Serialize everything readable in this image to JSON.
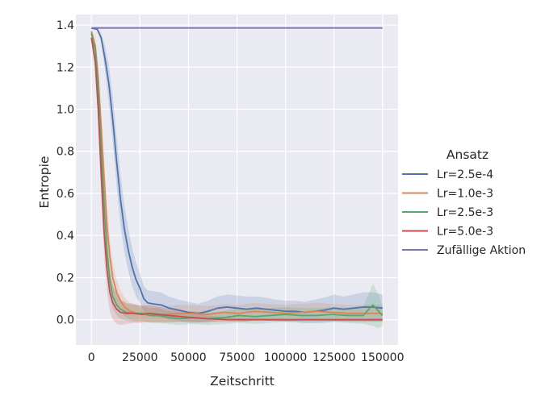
{
  "chart_data": {
    "type": "line",
    "title": "",
    "xlabel": "Zeitschritt",
    "ylabel": "Entropie",
    "xlim": [
      -8000,
      158000
    ],
    "ylim": [
      -0.12,
      1.45
    ],
    "xticks": [
      0,
      25000,
      50000,
      75000,
      100000,
      125000,
      150000
    ],
    "xtick_labels": [
      "0",
      "25000",
      "50000",
      "75000",
      "100000",
      "125000",
      "150000"
    ],
    "yticks": [
      0.0,
      0.2,
      0.4,
      0.6,
      0.8,
      1.0,
      1.2,
      1.4
    ],
    "ytick_labels": [
      "0.0",
      "0.2",
      "0.4",
      "0.6",
      "0.8",
      "1.0",
      "1.2",
      "1.4"
    ],
    "grid": true,
    "legend": {
      "title": "Ansatz",
      "placement": "right"
    },
    "colors": {
      "background": "#eaeaf2",
      "grid": "#ffffff"
    },
    "series": [
      {
        "name": "Lr=2.5e-4",
        "color": "#4c72b0",
        "x": [
          0,
          3000,
          5000,
          7000,
          9000,
          11000,
          13000,
          15000,
          17000,
          19000,
          21000,
          23000,
          25000,
          27000,
          29000,
          32000,
          36000,
          40000,
          45000,
          50000,
          55000,
          60000,
          65000,
          70000,
          75000,
          80000,
          85000,
          90000,
          95000,
          100000,
          105000,
          110000,
          115000,
          120000,
          125000,
          130000,
          135000,
          140000,
          145000,
          150000
        ],
        "y": [
          1.385,
          1.38,
          1.34,
          1.24,
          1.12,
          0.95,
          0.75,
          0.57,
          0.43,
          0.33,
          0.25,
          0.19,
          0.15,
          0.1,
          0.08,
          0.075,
          0.07,
          0.055,
          0.045,
          0.035,
          0.03,
          0.04,
          0.055,
          0.06,
          0.055,
          0.05,
          0.055,
          0.05,
          0.045,
          0.04,
          0.04,
          0.035,
          0.04,
          0.045,
          0.055,
          0.05,
          0.055,
          0.06,
          0.06,
          0.055
        ],
        "band": [
          0.0,
          0.005,
          0.02,
          0.06,
          0.09,
          0.11,
          0.12,
          0.12,
          0.11,
          0.1,
          0.09,
          0.08,
          0.07,
          0.06,
          0.06,
          0.06,
          0.06,
          0.055,
          0.05,
          0.05,
          0.045,
          0.05,
          0.055,
          0.06,
          0.06,
          0.06,
          0.055,
          0.055,
          0.05,
          0.05,
          0.05,
          0.05,
          0.055,
          0.06,
          0.065,
          0.06,
          0.065,
          0.07,
          0.07,
          0.065
        ]
      },
      {
        "name": "Lr=1.0e-3",
        "color": "#dd8452",
        "x": [
          0,
          2000,
          3500,
          5000,
          6500,
          8000,
          9500,
          11000,
          13000,
          15000,
          17000,
          20000,
          24000,
          28000,
          33000,
          38000,
          45000,
          52000,
          60000,
          68000,
          76000,
          84000,
          92000,
          100000,
          108000,
          116000,
          124000,
          132000,
          140000,
          150000
        ],
        "y": [
          1.37,
          1.3,
          1.15,
          0.92,
          0.68,
          0.45,
          0.3,
          0.2,
          0.13,
          0.09,
          0.06,
          0.04,
          0.03,
          0.03,
          0.025,
          0.025,
          0.03,
          0.03,
          0.025,
          0.035,
          0.03,
          0.04,
          0.035,
          0.03,
          0.035,
          0.04,
          0.035,
          0.03,
          0.03,
          0.03
        ],
        "band": [
          0.01,
          0.03,
          0.06,
          0.08,
          0.09,
          0.09,
          0.08,
          0.07,
          0.06,
          0.05,
          0.045,
          0.04,
          0.04,
          0.04,
          0.04,
          0.04,
          0.04,
          0.04,
          0.04,
          0.04,
          0.04,
          0.04,
          0.04,
          0.04,
          0.04,
          0.04,
          0.04,
          0.04,
          0.04,
          0.04
        ]
      },
      {
        "name": "Lr=2.5e-3",
        "color": "#55a868",
        "x": [
          0,
          2000,
          3500,
          5000,
          6500,
          8000,
          9500,
          11000,
          13000,
          15000,
          18000,
          22000,
          26000,
          30000,
          35000,
          40000,
          46000,
          52000,
          60000,
          68000,
          76000,
          84000,
          92000,
          100000,
          108000,
          116000,
          124000,
          132000,
          140000,
          145000,
          148000,
          150000
        ],
        "y": [
          1.36,
          1.28,
          1.1,
          0.82,
          0.55,
          0.33,
          0.19,
          0.11,
          0.07,
          0.05,
          0.035,
          0.03,
          0.03,
          0.02,
          0.02,
          0.01,
          0.005,
          0.01,
          0.005,
          0.01,
          0.02,
          0.015,
          0.02,
          0.025,
          0.02,
          0.02,
          0.025,
          0.02,
          0.02,
          0.07,
          0.04,
          0.02
        ],
        "band": [
          0.01,
          0.03,
          0.06,
          0.08,
          0.09,
          0.08,
          0.07,
          0.06,
          0.05,
          0.045,
          0.04,
          0.04,
          0.035,
          0.035,
          0.035,
          0.03,
          0.03,
          0.03,
          0.03,
          0.03,
          0.035,
          0.035,
          0.035,
          0.035,
          0.035,
          0.035,
          0.035,
          0.035,
          0.04,
          0.1,
          0.08,
          0.05
        ]
      },
      {
        "name": "Lr=5.0e-3",
        "color": "#c44e52",
        "x": [
          0,
          2000,
          3500,
          5000,
          6500,
          8000,
          9500,
          11000,
          13000,
          15000,
          18000,
          22000,
          26000,
          30000,
          35000,
          40000,
          46000,
          52000,
          60000,
          70000,
          80000,
          90000,
          100000,
          110000,
          120000,
          130000,
          140000,
          150000
        ],
        "y": [
          1.34,
          1.22,
          1.0,
          0.7,
          0.42,
          0.24,
          0.13,
          0.08,
          0.05,
          0.035,
          0.03,
          0.03,
          0.025,
          0.03,
          0.025,
          0.02,
          0.015,
          0.01,
          0.005,
          0.0,
          0.0,
          0.0,
          0.0,
          0.0,
          0.0,
          0.0,
          0.0,
          0.0
        ],
        "band": [
          0.01,
          0.03,
          0.07,
          0.1,
          0.11,
          0.1,
          0.09,
          0.08,
          0.07,
          0.06,
          0.05,
          0.045,
          0.04,
          0.04,
          0.035,
          0.03,
          0.025,
          0.02,
          0.015,
          0.01,
          0.008,
          0.006,
          0.005,
          0.005,
          0.005,
          0.005,
          0.005,
          0.005
        ]
      },
      {
        "name": "Zufällige Aktion",
        "color": "#8172b3",
        "x": [
          0,
          150000
        ],
        "y": [
          1.386,
          1.386
        ],
        "band": [
          0,
          0
        ]
      }
    ]
  }
}
